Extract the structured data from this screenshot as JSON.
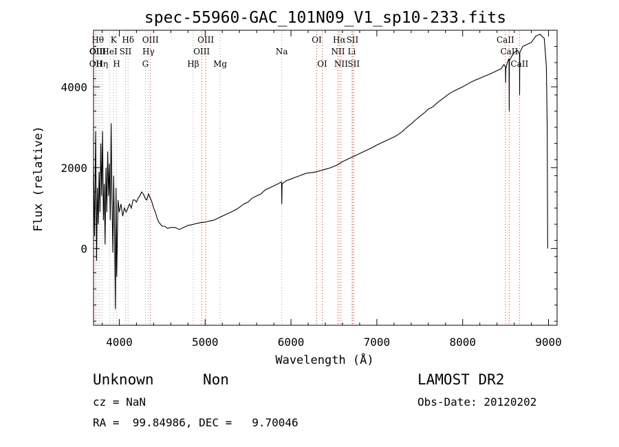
{
  "chart_data": {
    "type": "line",
    "title": "spec-55960-GAC_101N09_V1_sp10-233.fits",
    "xlabel": "Wavelength (Å)",
    "ylabel": "Flux (relative)",
    "xlim": [
      3700,
      9100
    ],
    "ylim": [
      -1900,
      5400
    ],
    "x_ticks": [
      4000,
      5000,
      6000,
      7000,
      8000,
      9000
    ],
    "x_tick_labels": [
      "4000",
      "5000",
      "6000",
      "7000",
      "8000",
      "9000"
    ],
    "y_ticks": [
      0,
      2000,
      4000
    ],
    "y_tick_labels": [
      "0",
      "2000",
      "4000"
    ],
    "grid": false,
    "series": [
      {
        "name": "",
        "color": "#000000",
        "points": [
          [
            3700,
            2100
          ],
          [
            3712,
            300
          ],
          [
            3725,
            2900
          ],
          [
            3735,
            -300
          ],
          [
            3745,
            1500
          ],
          [
            3755,
            600
          ],
          [
            3765,
            1900
          ],
          [
            3775,
            900
          ],
          [
            3785,
            2600
          ],
          [
            3795,
            1300
          ],
          [
            3805,
            2900
          ],
          [
            3815,
            700
          ],
          [
            3825,
            1600
          ],
          [
            3835,
            100
          ],
          [
            3845,
            2000
          ],
          [
            3855,
            900
          ],
          [
            3865,
            2400
          ],
          [
            3875,
            1300
          ],
          [
            3885,
            2100
          ],
          [
            3895,
            700
          ],
          [
            3905,
            3100
          ],
          [
            3915,
            1200
          ],
          [
            3925,
            -100
          ],
          [
            3935,
            1800
          ],
          [
            3945,
            400
          ],
          [
            3955,
            -1500
          ],
          [
            3962,
            1500
          ],
          [
            3970,
            -700
          ],
          [
            3985,
            1200
          ],
          [
            4000,
            900
          ],
          [
            4020,
            1100
          ],
          [
            4040,
            800
          ],
          [
            4060,
            1000
          ],
          [
            4080,
            900
          ],
          [
            4100,
            1000
          ],
          [
            4120,
            1100
          ],
          [
            4140,
            1000
          ],
          [
            4160,
            1200
          ],
          [
            4180,
            1200
          ],
          [
            4200,
            1150
          ],
          [
            4220,
            1250
          ],
          [
            4240,
            1300
          ],
          [
            4260,
            1400
          ],
          [
            4280,
            1350
          ],
          [
            4300,
            1250
          ],
          [
            4320,
            1200
          ],
          [
            4340,
            1350
          ],
          [
            4360,
            1250
          ],
          [
            4380,
            1150
          ],
          [
            4400,
            1000
          ],
          [
            4420,
            900
          ],
          [
            4440,
            750
          ],
          [
            4460,
            650
          ],
          [
            4480,
            600
          ],
          [
            4500,
            550
          ],
          [
            4530,
            550
          ],
          [
            4560,
            500
          ],
          [
            4600,
            520
          ],
          [
            4650,
            520
          ],
          [
            4700,
            470
          ],
          [
            4750,
            520
          ],
          [
            4800,
            570
          ],
          [
            4850,
            590
          ],
          [
            4900,
            620
          ],
          [
            4950,
            640
          ],
          [
            5000,
            650
          ],
          [
            5050,
            680
          ],
          [
            5100,
            700
          ],
          [
            5150,
            750
          ],
          [
            5200,
            800
          ],
          [
            5250,
            850
          ],
          [
            5300,
            900
          ],
          [
            5350,
            950
          ],
          [
            5400,
            1020
          ],
          [
            5450,
            1100
          ],
          [
            5500,
            1150
          ],
          [
            5550,
            1250
          ],
          [
            5600,
            1300
          ],
          [
            5650,
            1350
          ],
          [
            5700,
            1450
          ],
          [
            5750,
            1500
          ],
          [
            5800,
            1550
          ],
          [
            5850,
            1600
          ],
          [
            5890,
            1650
          ],
          [
            5893,
            1100
          ],
          [
            5897,
            1600
          ],
          [
            5950,
            1680
          ],
          [
            6000,
            1720
          ],
          [
            6050,
            1760
          ],
          [
            6100,
            1800
          ],
          [
            6150,
            1840
          ],
          [
            6200,
            1870
          ],
          [
            6250,
            1880
          ],
          [
            6300,
            1900
          ],
          [
            6350,
            1930
          ],
          [
            6400,
            1960
          ],
          [
            6450,
            1990
          ],
          [
            6500,
            2030
          ],
          [
            6550,
            2080
          ],
          [
            6600,
            2150
          ],
          [
            6650,
            2200
          ],
          [
            6700,
            2250
          ],
          [
            6750,
            2300
          ],
          [
            6800,
            2350
          ],
          [
            6850,
            2400
          ],
          [
            6900,
            2450
          ],
          [
            6950,
            2500
          ],
          [
            7000,
            2560
          ],
          [
            7050,
            2610
          ],
          [
            7100,
            2660
          ],
          [
            7150,
            2710
          ],
          [
            7200,
            2760
          ],
          [
            7250,
            2820
          ],
          [
            7300,
            2900
          ],
          [
            7350,
            3000
          ],
          [
            7400,
            3080
          ],
          [
            7450,
            3180
          ],
          [
            7500,
            3270
          ],
          [
            7550,
            3350
          ],
          [
            7600,
            3450
          ],
          [
            7650,
            3500
          ],
          [
            7700,
            3600
          ],
          [
            7750,
            3680
          ],
          [
            7800,
            3760
          ],
          [
            7850,
            3840
          ],
          [
            7900,
            3900
          ],
          [
            7950,
            3950
          ],
          [
            8000,
            4000
          ],
          [
            8050,
            4060
          ],
          [
            8100,
            4120
          ],
          [
            8150,
            4170
          ],
          [
            8200,
            4210
          ],
          [
            8250,
            4260
          ],
          [
            8300,
            4300
          ],
          [
            8350,
            4350
          ],
          [
            8400,
            4400
          ],
          [
            8450,
            4450
          ],
          [
            8480,
            4550
          ],
          [
            8498,
            4500
          ],
          [
            8500,
            4100
          ],
          [
            8503,
            4450
          ],
          [
            8520,
            4600
          ],
          [
            8540,
            4700
          ],
          [
            8542,
            3400
          ],
          [
            8545,
            4650
          ],
          [
            8570,
            4750
          ],
          [
            8600,
            4850
          ],
          [
            8640,
            4900
          ],
          [
            8662,
            4800
          ],
          [
            8663,
            3800
          ],
          [
            8666,
            4850
          ],
          [
            8700,
            5000
          ],
          [
            8750,
            5050
          ],
          [
            8800,
            5100
          ],
          [
            8850,
            5250
          ],
          [
            8900,
            5300
          ],
          [
            8950,
            5200
          ],
          [
            8975,
            4500
          ],
          [
            8985,
            3000
          ],
          [
            8990,
            0
          ]
        ]
      }
    ],
    "line_markers": [
      {
        "wl": 3727,
        "color": "#ff2200",
        "labels": [
          {
            "row": 2,
            "text": "OII"
          },
          {
            "row": 3,
            "text": "OII"
          }
        ]
      },
      {
        "wl": 3750,
        "color": "#a0a0a0",
        "labels": [
          {
            "row": 1,
            "text": "Hθ"
          },
          {
            "row": 2,
            "text": "OIII"
          }
        ]
      },
      {
        "wl": 3771,
        "color": "#a0a0a0",
        "labels": [
          {
            "row": 3,
            "text": "H"
          }
        ]
      },
      {
        "wl": 3798,
        "color": "#a0a0a0",
        "labels": [
          {
            "row": 3,
            "text": "Hη"
          }
        ]
      },
      {
        "wl": 3889,
        "color": "#a0a0a0",
        "labels": [
          {
            "row": 2,
            "text": "HeI"
          }
        ]
      },
      {
        "wl": 3934,
        "color": "#a0a0a0",
        "labels": [
          {
            "row": 1,
            "text": "K"
          }
        ]
      },
      {
        "wl": 3969,
        "color": "#a0a0a0",
        "labels": [
          {
            "row": 3,
            "text": "H"
          }
        ]
      },
      {
        "wl": 4072,
        "color": "#a0a0a0",
        "labels": [
          {
            "row": 2,
            "text": "SII"
          }
        ]
      },
      {
        "wl": 4102,
        "color": "#a0a0a0",
        "labels": [
          {
            "row": 1,
            "text": "Hδ"
          }
        ]
      },
      {
        "wl": 4304,
        "color": "#a0a0a0",
        "labels": [
          {
            "row": 3,
            "text": "G"
          }
        ]
      },
      {
        "wl": 4340,
        "color": "#a0a0a0",
        "labels": [
          {
            "row": 2,
            "text": "Hγ"
          }
        ]
      },
      {
        "wl": 4363,
        "color": "#ff2200",
        "labels": [
          {
            "row": 1,
            "text": "OIII"
          }
        ]
      },
      {
        "wl": 4861,
        "color": "#a0a0a0",
        "labels": [
          {
            "row": 3,
            "text": "Hβ"
          }
        ]
      },
      {
        "wl": 4959,
        "color": "#ff2200",
        "labels": [
          {
            "row": 2,
            "text": "OIII"
          }
        ]
      },
      {
        "wl": 5007,
        "color": "#ff2200",
        "labels": [
          {
            "row": 1,
            "text": "OIII"
          }
        ]
      },
      {
        "wl": 5175,
        "color": "#a0a0a0",
        "labels": [
          {
            "row": 3,
            "text": "Mg"
          }
        ]
      },
      {
        "wl": 5893,
        "color": "#a0a0a0",
        "labels": [
          {
            "row": 2,
            "text": "Na"
          }
        ]
      },
      {
        "wl": 6300,
        "color": "#ff2200",
        "labels": [
          {
            "row": 1,
            "text": "OI"
          }
        ]
      },
      {
        "wl": 6364,
        "color": "#ff2200",
        "labels": [
          {
            "row": 3,
            "text": "OI"
          }
        ]
      },
      {
        "wl": 6548,
        "color": "#ff2200",
        "labels": [
          {
            "row": 2,
            "text": "NII"
          }
        ]
      },
      {
        "wl": 6563,
        "color": "#a0a0a0",
        "labels": [
          {
            "row": 1,
            "text": "Hα"
          }
        ]
      },
      {
        "wl": 6583,
        "color": "#ff2200",
        "labels": [
          {
            "row": 3,
            "text": "NII"
          }
        ]
      },
      {
        "wl": 6708,
        "color": "#a0a0a0",
        "labels": [
          {
            "row": 2,
            "text": "Li"
          }
        ]
      },
      {
        "wl": 6716,
        "color": "#ff2200",
        "labels": [
          {
            "row": 1,
            "text": "SII"
          }
        ]
      },
      {
        "wl": 6731,
        "color": "#ff2200",
        "labels": [
          {
            "row": 3,
            "text": "SII"
          }
        ]
      },
      {
        "wl": 8498,
        "color": "#ff2200",
        "labels": [
          {
            "row": 1,
            "text": "CaII"
          }
        ]
      },
      {
        "wl": 8542,
        "color": "#ff2200",
        "labels": [
          {
            "row": 2,
            "text": "CaII"
          }
        ]
      },
      {
        "wl": 8662,
        "color": "#ff2200",
        "labels": [
          {
            "row": 3,
            "text": "CaII"
          }
        ]
      }
    ]
  },
  "info": {
    "class_label": "Unknown",
    "subclass_label": "Non",
    "survey": "LAMOST DR2",
    "cz": "cz = NaN",
    "obs_date": "Obs-Date: 20120202",
    "coords": "RA =  99.84986, DEC =   9.70046"
  }
}
